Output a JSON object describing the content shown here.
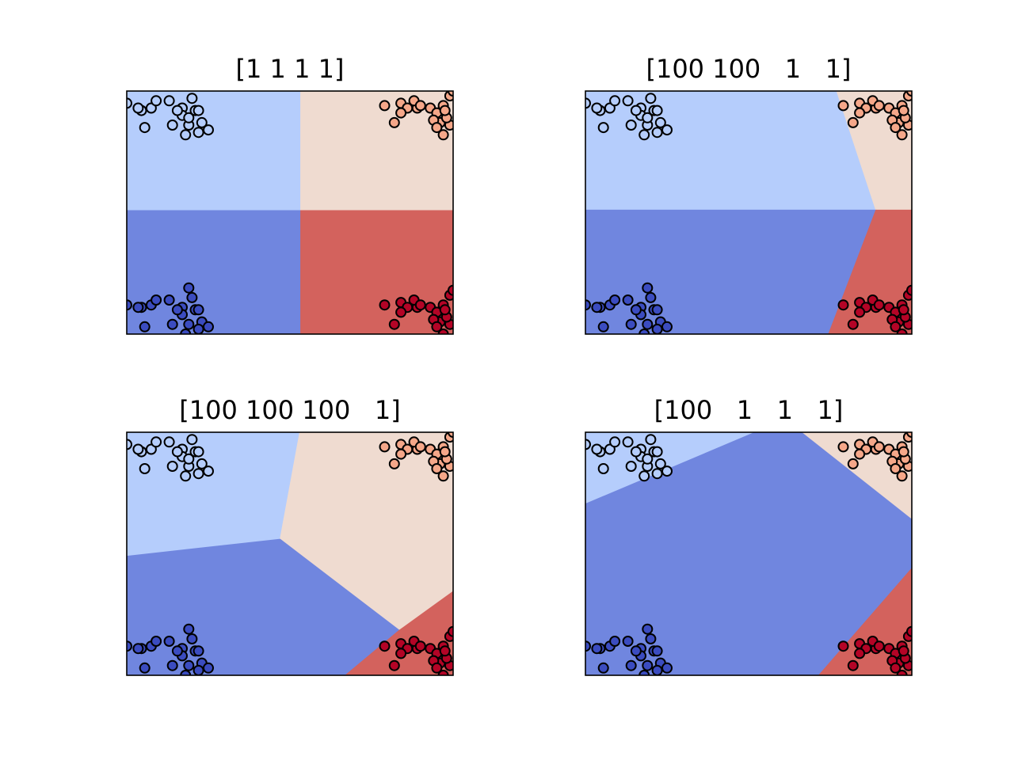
{
  "chart_data": [
    {
      "type": "scatter",
      "title": "[1 1 1 1]",
      "xlim": [
        0,
        1
      ],
      "ylim": [
        0,
        1
      ],
      "ticks": false,
      "grid": false,
      "region_colors": {
        "TL": "#b5cdfc",
        "TR": "#efdbd0",
        "BL": "#7086df",
        "BR": "#d3625d"
      },
      "regions": [
        {
          "cls": "TL",
          "poly": [
            [
              0,
              1
            ],
            [
              0.533,
              1
            ],
            [
              0.533,
              0.508
            ],
            [
              0,
              0.508
            ]
          ]
        },
        {
          "cls": "TR",
          "poly": [
            [
              0.533,
              1
            ],
            [
              1,
              1
            ],
            [
              1,
              0.508
            ],
            [
              0.533,
              0.508
            ]
          ]
        },
        {
          "cls": "BL",
          "poly": [
            [
              0,
              0.508
            ],
            [
              0.533,
              0.508
            ],
            [
              0.533,
              0
            ],
            [
              0,
              0
            ]
          ]
        },
        {
          "cls": "BR",
          "poly": [
            [
              0.533,
              0.508
            ],
            [
              1,
              0.508
            ],
            [
              1,
              0
            ],
            [
              0.533,
              0
            ]
          ]
        }
      ]
    },
    {
      "type": "scatter",
      "title": "[100 100   1   1]",
      "xlim": [
        0,
        1
      ],
      "ylim": [
        0,
        1
      ],
      "ticks": false,
      "grid": false,
      "region_colors": {
        "TL": "#b5cdfc",
        "TR": "#efdbd0",
        "BL": "#7086df",
        "BR": "#d3625d"
      },
      "regions": [
        {
          "cls": "TL",
          "poly": [
            [
              0,
              1
            ],
            [
              0.77,
              1
            ],
            [
              0.89,
              0.51
            ],
            [
              0,
              0.51
            ]
          ]
        },
        {
          "cls": "TR",
          "poly": [
            [
              0.77,
              1
            ],
            [
              1,
              1
            ],
            [
              1,
              0.51
            ],
            [
              0.89,
              0.51
            ]
          ]
        },
        {
          "cls": "BL",
          "poly": [
            [
              0,
              0.51
            ],
            [
              0.89,
              0.51
            ],
            [
              0.745,
              0
            ],
            [
              0,
              0
            ]
          ]
        },
        {
          "cls": "BR",
          "poly": [
            [
              0.89,
              0.51
            ],
            [
              1,
              0.51
            ],
            [
              1,
              0
            ],
            [
              0.745,
              0
            ]
          ]
        }
      ]
    },
    {
      "type": "scatter",
      "title": "[100 100 100   1]",
      "xlim": [
        0,
        1
      ],
      "ylim": [
        0,
        1
      ],
      "ticks": false,
      "grid": false,
      "region_colors": {
        "TL": "#b5cdfc",
        "TR": "#efdbd0",
        "BL": "#7086df",
        "BR": "#d3625d"
      },
      "regions": [
        {
          "cls": "TL",
          "poly": [
            [
              0,
              1
            ],
            [
              0.53,
              1
            ],
            [
              0.47,
              0.56
            ],
            [
              0,
              0.49
            ]
          ]
        },
        {
          "cls": "TR",
          "poly": [
            [
              0.53,
              1
            ],
            [
              1,
              1
            ],
            [
              1,
              0.345
            ],
            [
              0.835,
              0.185
            ],
            [
              0.47,
              0.56
            ]
          ]
        },
        {
          "cls": "BL",
          "poly": [
            [
              0,
              0.49
            ],
            [
              0.47,
              0.56
            ],
            [
              0.835,
              0.185
            ],
            [
              0.67,
              0
            ],
            [
              0,
              0
            ]
          ]
        },
        {
          "cls": "BR",
          "poly": [
            [
              0.835,
              0.185
            ],
            [
              1,
              0.345
            ],
            [
              1,
              0
            ],
            [
              0.67,
              0
            ]
          ]
        }
      ]
    },
    {
      "type": "scatter",
      "title": "[100   1   1   1]",
      "xlim": [
        0,
        1
      ],
      "ylim": [
        0,
        1
      ],
      "ticks": false,
      "grid": false,
      "region_colors": {
        "TL": "#b5cdfc",
        "TR": "#efdbd0",
        "BL": "#7086df",
        "BR": "#d3625d"
      },
      "regions": [
        {
          "cls": "TL",
          "poly": [
            [
              0,
              1
            ],
            [
              0.52,
              1
            ],
            [
              0,
              0.705
            ]
          ]
        },
        {
          "cls": "BL",
          "poly": [
            [
              0.52,
              1
            ],
            [
              0.665,
              1
            ],
            [
              1,
              0.645
            ],
            [
              1,
              0.44
            ],
            [
              0.715,
              0
            ],
            [
              0,
              0
            ],
            [
              0,
              0.705
            ]
          ]
        },
        {
          "cls": "TR",
          "poly": [
            [
              0.665,
              1
            ],
            [
              1,
              1
            ],
            [
              1,
              0.645
            ]
          ]
        },
        {
          "cls": "BR",
          "poly": [
            [
              1,
              0.44
            ],
            [
              1,
              0
            ],
            [
              0.715,
              0
            ]
          ]
        }
      ]
    }
  ],
  "point_colors": {
    "TL": "#b5cdfc",
    "TR": "#f5a789",
    "BL": "#3b4cc0",
    "BR": "#b40426"
  },
  "point_sets": {
    "TL": [
      [
        0.0,
        0.95
      ],
      [
        0.045,
        0.92
      ],
      [
        0.075,
        0.93
      ],
      [
        0.09,
        0.96
      ],
      [
        0.13,
        0.96
      ],
      [
        0.17,
        0.93
      ],
      [
        0.2,
        0.97
      ],
      [
        0.21,
        0.92
      ],
      [
        0.17,
        0.9
      ],
      [
        0.14,
        0.86
      ],
      [
        0.19,
        0.86
      ],
      [
        0.23,
        0.87
      ],
      [
        0.18,
        0.82
      ],
      [
        0.22,
        0.83
      ],
      [
        0.055,
        0.85
      ],
      [
        0.22,
        0.92
      ],
      [
        0.25,
        0.84
      ],
      [
        0.19,
        0.89
      ],
      [
        0.035,
        0.93
      ],
      [
        0.155,
        0.92
      ]
    ],
    "TR": [
      [
        0.79,
        0.94
      ],
      [
        0.84,
        0.95
      ],
      [
        0.86,
        0.93
      ],
      [
        0.89,
        0.93
      ],
      [
        0.88,
        0.96
      ],
      [
        0.93,
        0.93
      ],
      [
        0.95,
        0.91
      ],
      [
        0.97,
        0.94
      ],
      [
        0.99,
        0.98
      ],
      [
        0.96,
        0.87
      ],
      [
        0.99,
        0.86
      ],
      [
        0.97,
        0.82
      ],
      [
        0.94,
        0.88
      ],
      [
        0.84,
        0.91
      ],
      [
        0.82,
        0.87
      ],
      [
        0.9,
        0.94
      ],
      [
        0.98,
        0.89
      ],
      [
        1.0,
        1.0
      ],
      [
        0.95,
        0.85
      ],
      [
        0.975,
        0.92
      ]
    ],
    "BL": [
      [
        0.0,
        0.12
      ],
      [
        0.045,
        0.11
      ],
      [
        0.075,
        0.12
      ],
      [
        0.09,
        0.14
      ],
      [
        0.13,
        0.14
      ],
      [
        0.17,
        0.11
      ],
      [
        0.2,
        0.15
      ],
      [
        0.21,
        0.1
      ],
      [
        0.17,
        0.08
      ],
      [
        0.14,
        0.04
      ],
      [
        0.19,
        0.04
      ],
      [
        0.23,
        0.05
      ],
      [
        0.18,
        0.0
      ],
      [
        0.22,
        0.02
      ],
      [
        0.055,
        0.03
      ],
      [
        0.22,
        0.1
      ],
      [
        0.25,
        0.03
      ],
      [
        0.19,
        0.19
      ],
      [
        0.035,
        0.11
      ],
      [
        0.155,
        0.1
      ]
    ],
    "BR": [
      [
        0.79,
        0.12
      ],
      [
        0.84,
        0.13
      ],
      [
        0.86,
        0.11
      ],
      [
        0.89,
        0.11
      ],
      [
        0.88,
        0.14
      ],
      [
        0.93,
        0.11
      ],
      [
        0.95,
        0.09
      ],
      [
        0.97,
        0.12
      ],
      [
        0.99,
        0.16
      ],
      [
        0.96,
        0.05
      ],
      [
        0.99,
        0.04
      ],
      [
        0.97,
        0.0
      ],
      [
        0.94,
        0.06
      ],
      [
        0.84,
        0.09
      ],
      [
        0.82,
        0.04
      ],
      [
        0.9,
        0.12
      ],
      [
        0.98,
        0.07
      ],
      [
        1.0,
        0.18
      ],
      [
        0.95,
        0.03
      ],
      [
        0.975,
        0.1
      ]
    ]
  }
}
